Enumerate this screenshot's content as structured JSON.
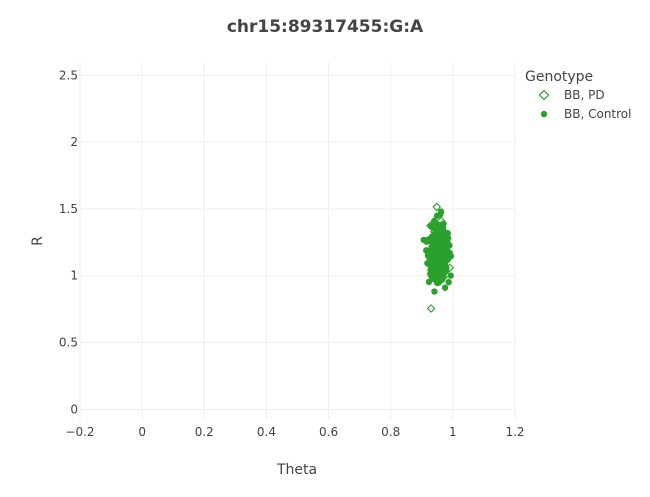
{
  "chart_data": {
    "type": "scatter",
    "title": "chr15:89317455:G:A",
    "xlabel": "Theta",
    "ylabel": "R",
    "xlim": [
      -0.2,
      1.2
    ],
    "ylim": [
      -0.08,
      2.6
    ],
    "x_ticks": [
      -0.2,
      0,
      0.2,
      0.4,
      0.6,
      0.8,
      1,
      1.2
    ],
    "x_tick_labels": [
      "−0.2",
      "0",
      "0.2",
      "0.4",
      "0.6",
      "0.8",
      "1",
      "1.2"
    ],
    "y_ticks": [
      0,
      0.5,
      1,
      1.5,
      2,
      2.5
    ],
    "y_tick_labels": [
      "0",
      "0.5",
      "1",
      "1.5",
      "2",
      "2.5"
    ],
    "grid": true,
    "legend": {
      "title": "Genotype",
      "placement": "top-right"
    },
    "series": [
      {
        "name": "BB, PD",
        "marker": "diamond-open",
        "color": "#2ca02c",
        "points": [
          [
            0.948,
            1.515
          ],
          [
            0.928,
            1.375
          ],
          [
            0.93,
            0.755
          ],
          [
            0.962,
            1.41
          ],
          [
            0.94,
            1.33
          ],
          [
            0.975,
            1.28
          ],
          [
            0.918,
            1.18
          ],
          [
            0.985,
            1.22
          ],
          [
            0.955,
            1.05
          ],
          [
            0.97,
            0.99
          ],
          [
            0.922,
            1.09
          ],
          [
            0.945,
            1.24
          ],
          [
            0.982,
            1.13
          ],
          [
            0.935,
            1.01
          ],
          [
            0.96,
            1.3
          ],
          [
            0.99,
            1.06
          ],
          [
            0.915,
            1.26
          ],
          [
            0.95,
            1.14
          ]
        ]
      },
      {
        "name": "BB, Control",
        "marker": "circle",
        "color": "#2ca02c",
        "center": [
          0.955,
          1.17
        ],
        "spread": [
          0.014,
          0.085
        ],
        "count": 520,
        "outliers": [
          [
            0.96,
            1.46
          ],
          [
            0.97,
            1.39
          ],
          [
            0.94,
            1.41
          ],
          [
            0.975,
            0.91
          ],
          [
            0.955,
            0.95
          ],
          [
            0.935,
            1.02
          ],
          [
            0.92,
            1.15
          ],
          [
            0.99,
            1.17
          ],
          [
            0.962,
            1.48
          ],
          [
            0.93,
            1.37
          ],
          [
            0.965,
            0.97
          ],
          [
            0.985,
            1.28
          ]
        ]
      }
    ]
  }
}
